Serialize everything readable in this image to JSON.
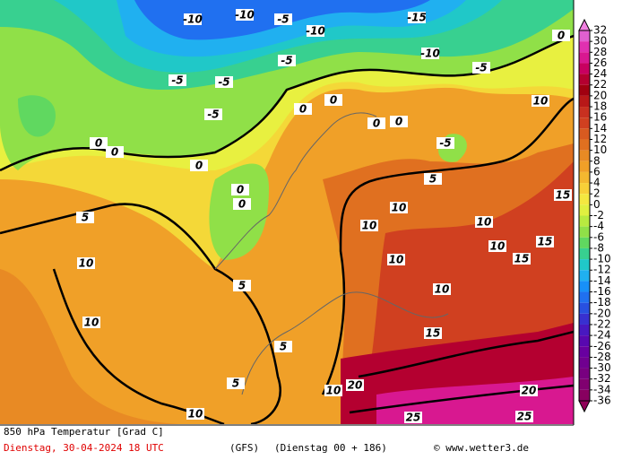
{
  "footer": {
    "title": "850 hPa Temperatur [Grad C]",
    "date": "Dienstag, 30-04-2024  18 UTC",
    "model": "(GFS)",
    "run": "(Dienstag 00 + 186)",
    "credit": "© www.wetter3.de"
  },
  "colorbar": {
    "ticks": [
      32,
      30,
      28,
      26,
      24,
      22,
      20,
      18,
      16,
      14,
      12,
      10,
      8,
      6,
      4,
      2,
      0,
      -2,
      -4,
      -6,
      -8,
      -10,
      -12,
      -14,
      -16,
      -18,
      -20,
      -22,
      -24,
      -26,
      -28,
      -30,
      -32,
      -34,
      -36
    ],
    "colors": [
      "#e060d0",
      "#e030b0",
      "#d81890",
      "#c80060",
      "#b40030",
      "#a00010",
      "#b81818",
      "#c83020",
      "#d04020",
      "#d85a20",
      "#e07020",
      "#e88a24",
      "#f0a028",
      "#f4b830",
      "#f8d038",
      "#f4e840",
      "#e0f040",
      "#b8ea40",
      "#90e048",
      "#60d860",
      "#38d090",
      "#20c8c8",
      "#20b0f0",
      "#1890f8",
      "#2070f0",
      "#2850e0",
      "#3830d0",
      "#4818c0",
      "#5808b0",
      "#6800a0",
      "#700090",
      "#780080",
      "#800070",
      "#880060"
    ],
    "above_color": "#f080e0",
    "below_color": "#900058"
  },
  "contour_labels": [
    -10,
    -10,
    -5,
    -10,
    -15,
    -10,
    -5,
    0,
    -5,
    -5,
    -5,
    -5,
    0,
    0,
    0,
    0,
    -5,
    0,
    0,
    0,
    0,
    0,
    5,
    5,
    10,
    10,
    10,
    10,
    10,
    15,
    15,
    15,
    10,
    10,
    10,
    5,
    10,
    15,
    20,
    10,
    20,
    25,
    25,
    5,
    5,
    10
  ]
}
